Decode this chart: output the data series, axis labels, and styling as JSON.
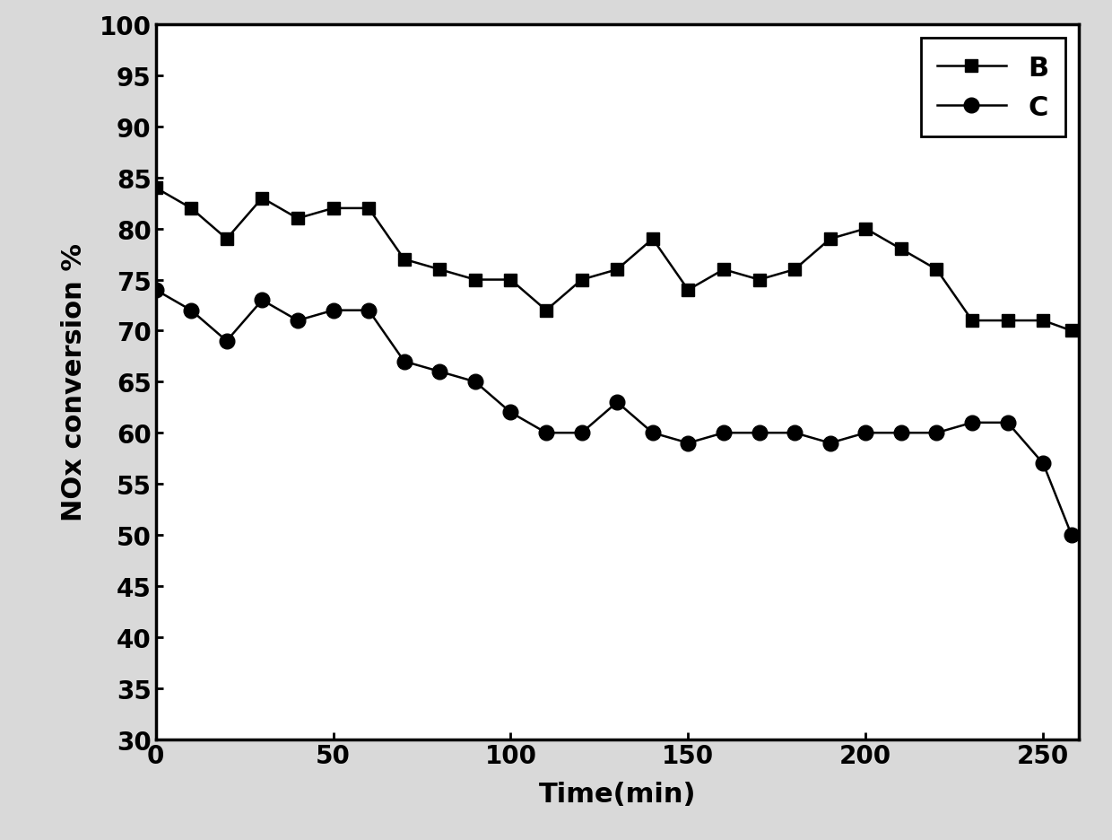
{
  "series_B_x": [
    0,
    10,
    20,
    30,
    40,
    50,
    60,
    70,
    80,
    90,
    100,
    110,
    120,
    130,
    140,
    150,
    160,
    170,
    180,
    190,
    200,
    210,
    220,
    230,
    240,
    250,
    258
  ],
  "series_B_y": [
    84,
    82,
    79,
    83,
    81,
    82,
    82,
    77,
    76,
    75,
    75,
    72,
    75,
    76,
    79,
    74,
    76,
    75,
    76,
    79,
    80,
    78,
    76,
    71,
    71,
    71,
    70
  ],
  "series_C_x": [
    0,
    10,
    20,
    30,
    40,
    50,
    60,
    70,
    80,
    90,
    100,
    110,
    120,
    130,
    140,
    150,
    160,
    170,
    180,
    190,
    200,
    210,
    220,
    230,
    240,
    250,
    258
  ],
  "series_C_y": [
    74,
    72,
    69,
    73,
    71,
    72,
    72,
    67,
    66,
    65,
    62,
    60,
    60,
    63,
    60,
    59,
    60,
    60,
    60,
    59,
    60,
    60,
    60,
    61,
    61,
    57,
    50
  ],
  "xlabel": "Time(min)",
  "ylabel": "NOx conversion %",
  "xlim": [
    0,
    260
  ],
  "ylim": [
    30,
    100
  ],
  "yticks": [
    30,
    35,
    40,
    45,
    50,
    55,
    60,
    65,
    70,
    75,
    80,
    85,
    90,
    95,
    100
  ],
  "xticks": [
    0,
    50,
    100,
    150,
    200,
    250
  ],
  "line_color": "#000000",
  "plot_bg_color": "#ffffff",
  "fig_bg_color": "#d9d9d9",
  "legend_labels": [
    "B",
    "C"
  ],
  "marker_B": "s",
  "marker_C": "o",
  "marker_size_B": 10,
  "marker_size_C": 12,
  "linewidth": 1.8,
  "axis_fontsize": 22,
  "tick_fontsize": 20,
  "legend_fontsize": 22
}
